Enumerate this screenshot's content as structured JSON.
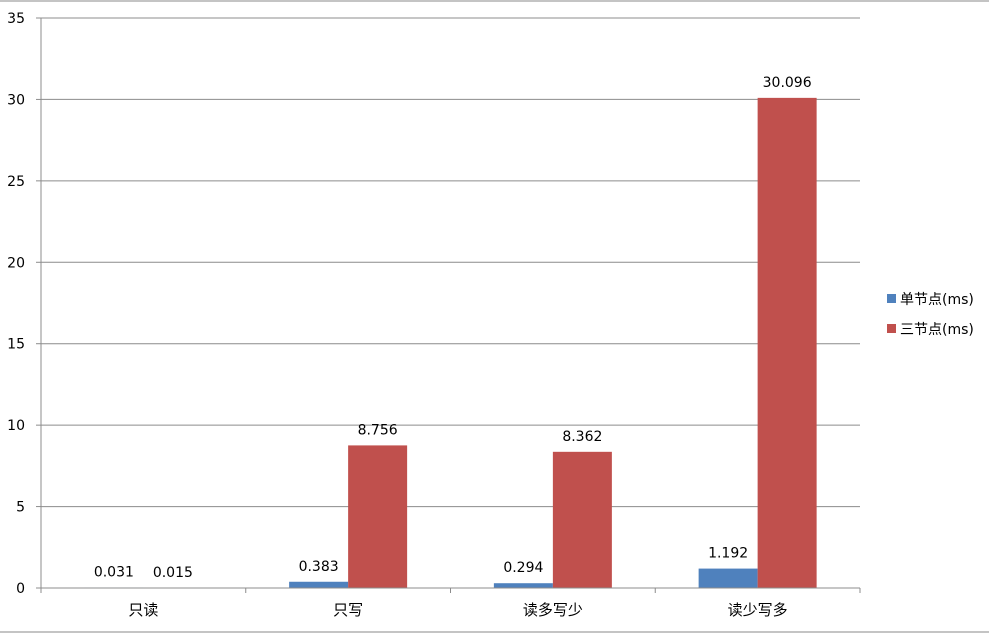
{
  "chart_data": {
    "type": "bar",
    "categories": [
      "只读",
      "只写",
      "读多写少",
      "读少写多"
    ],
    "series": [
      {
        "name": "单节点(ms)",
        "color": "#4F81BD",
        "values": [
          0.031,
          0.383,
          0.294,
          1.192
        ]
      },
      {
        "name": "三节点(ms)",
        "color": "#C0504D",
        "values": [
          0.015,
          8.756,
          8.362,
          30.096
        ]
      }
    ],
    "data_labels": [
      [
        "0.031",
        "0.383",
        "0.294",
        "1.192"
      ],
      [
        "0.015",
        "8.756",
        "8.362",
        "30.096"
      ]
    ],
    "ylim": [
      0,
      35
    ],
    "yticks": [
      0,
      5,
      10,
      15,
      20,
      25,
      30,
      35
    ],
    "grid": true,
    "legend_position": "right"
  }
}
